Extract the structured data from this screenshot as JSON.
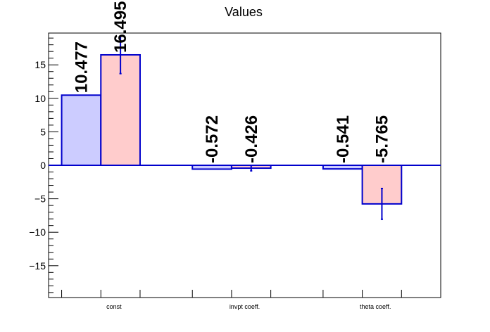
{
  "chart_data": {
    "type": "bar",
    "title": "Values",
    "xlabel": "",
    "ylabel": "",
    "ylim": [
      -19.75,
      19.75
    ],
    "grid": false,
    "categories": [
      "const",
      "invpt coeff.",
      "theta coeff."
    ],
    "series": [
      {
        "color": "#ccccff",
        "values": [
          10.477,
          -0.572,
          -0.541
        ],
        "errors": [
          0,
          0,
          0
        ],
        "labels": [
          "10.477",
          "-0.572",
          "-0.541"
        ]
      },
      {
        "color": "#ffcccc",
        "values": [
          16.495,
          -0.426,
          -5.765
        ],
        "errors": [
          2.8,
          0.4,
          2.3
        ],
        "labels": [
          "16.495",
          "-0.426",
          "-5.765"
        ]
      }
    ],
    "yticks": [
      -15,
      -10,
      -5,
      0,
      5,
      10,
      15
    ],
    "ytick_labels": [
      "−15",
      "−10",
      "−5",
      "0",
      "5",
      "10",
      "15"
    ],
    "edge_color": "#0000cc"
  }
}
